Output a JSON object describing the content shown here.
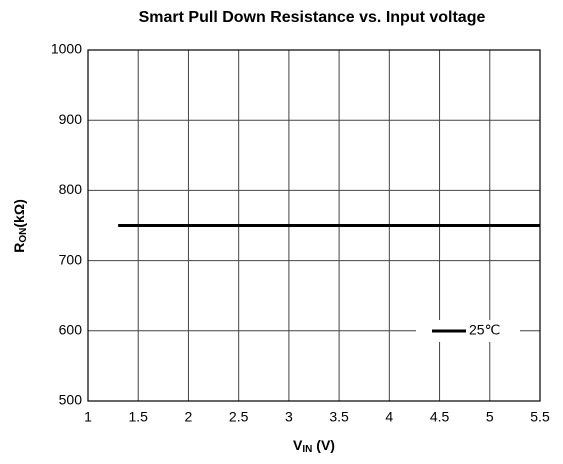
{
  "chart_data": {
    "type": "line",
    "title": "Smart Pull Down Resistance vs. Input voltage",
    "xlabel": {
      "main": "V",
      "sub": "IN",
      "unit": " (V)"
    },
    "ylabel": {
      "main": "R",
      "sub": "ON",
      "unit": "(kΩ)"
    },
    "x": [
      1.3,
      5.5
    ],
    "series": [
      {
        "name": "25℃",
        "color": "#000000",
        "values": [
          750,
          750
        ]
      }
    ],
    "xlim": [
      1,
      5.5
    ],
    "xticks": [
      1,
      1.5,
      2,
      2.5,
      3,
      3.5,
      4,
      4.5,
      5,
      5.5
    ],
    "ylim": [
      500,
      1000
    ],
    "yticks": [
      500,
      600,
      700,
      800,
      900,
      1000
    ],
    "grid": true,
    "legend": "lower right"
  }
}
